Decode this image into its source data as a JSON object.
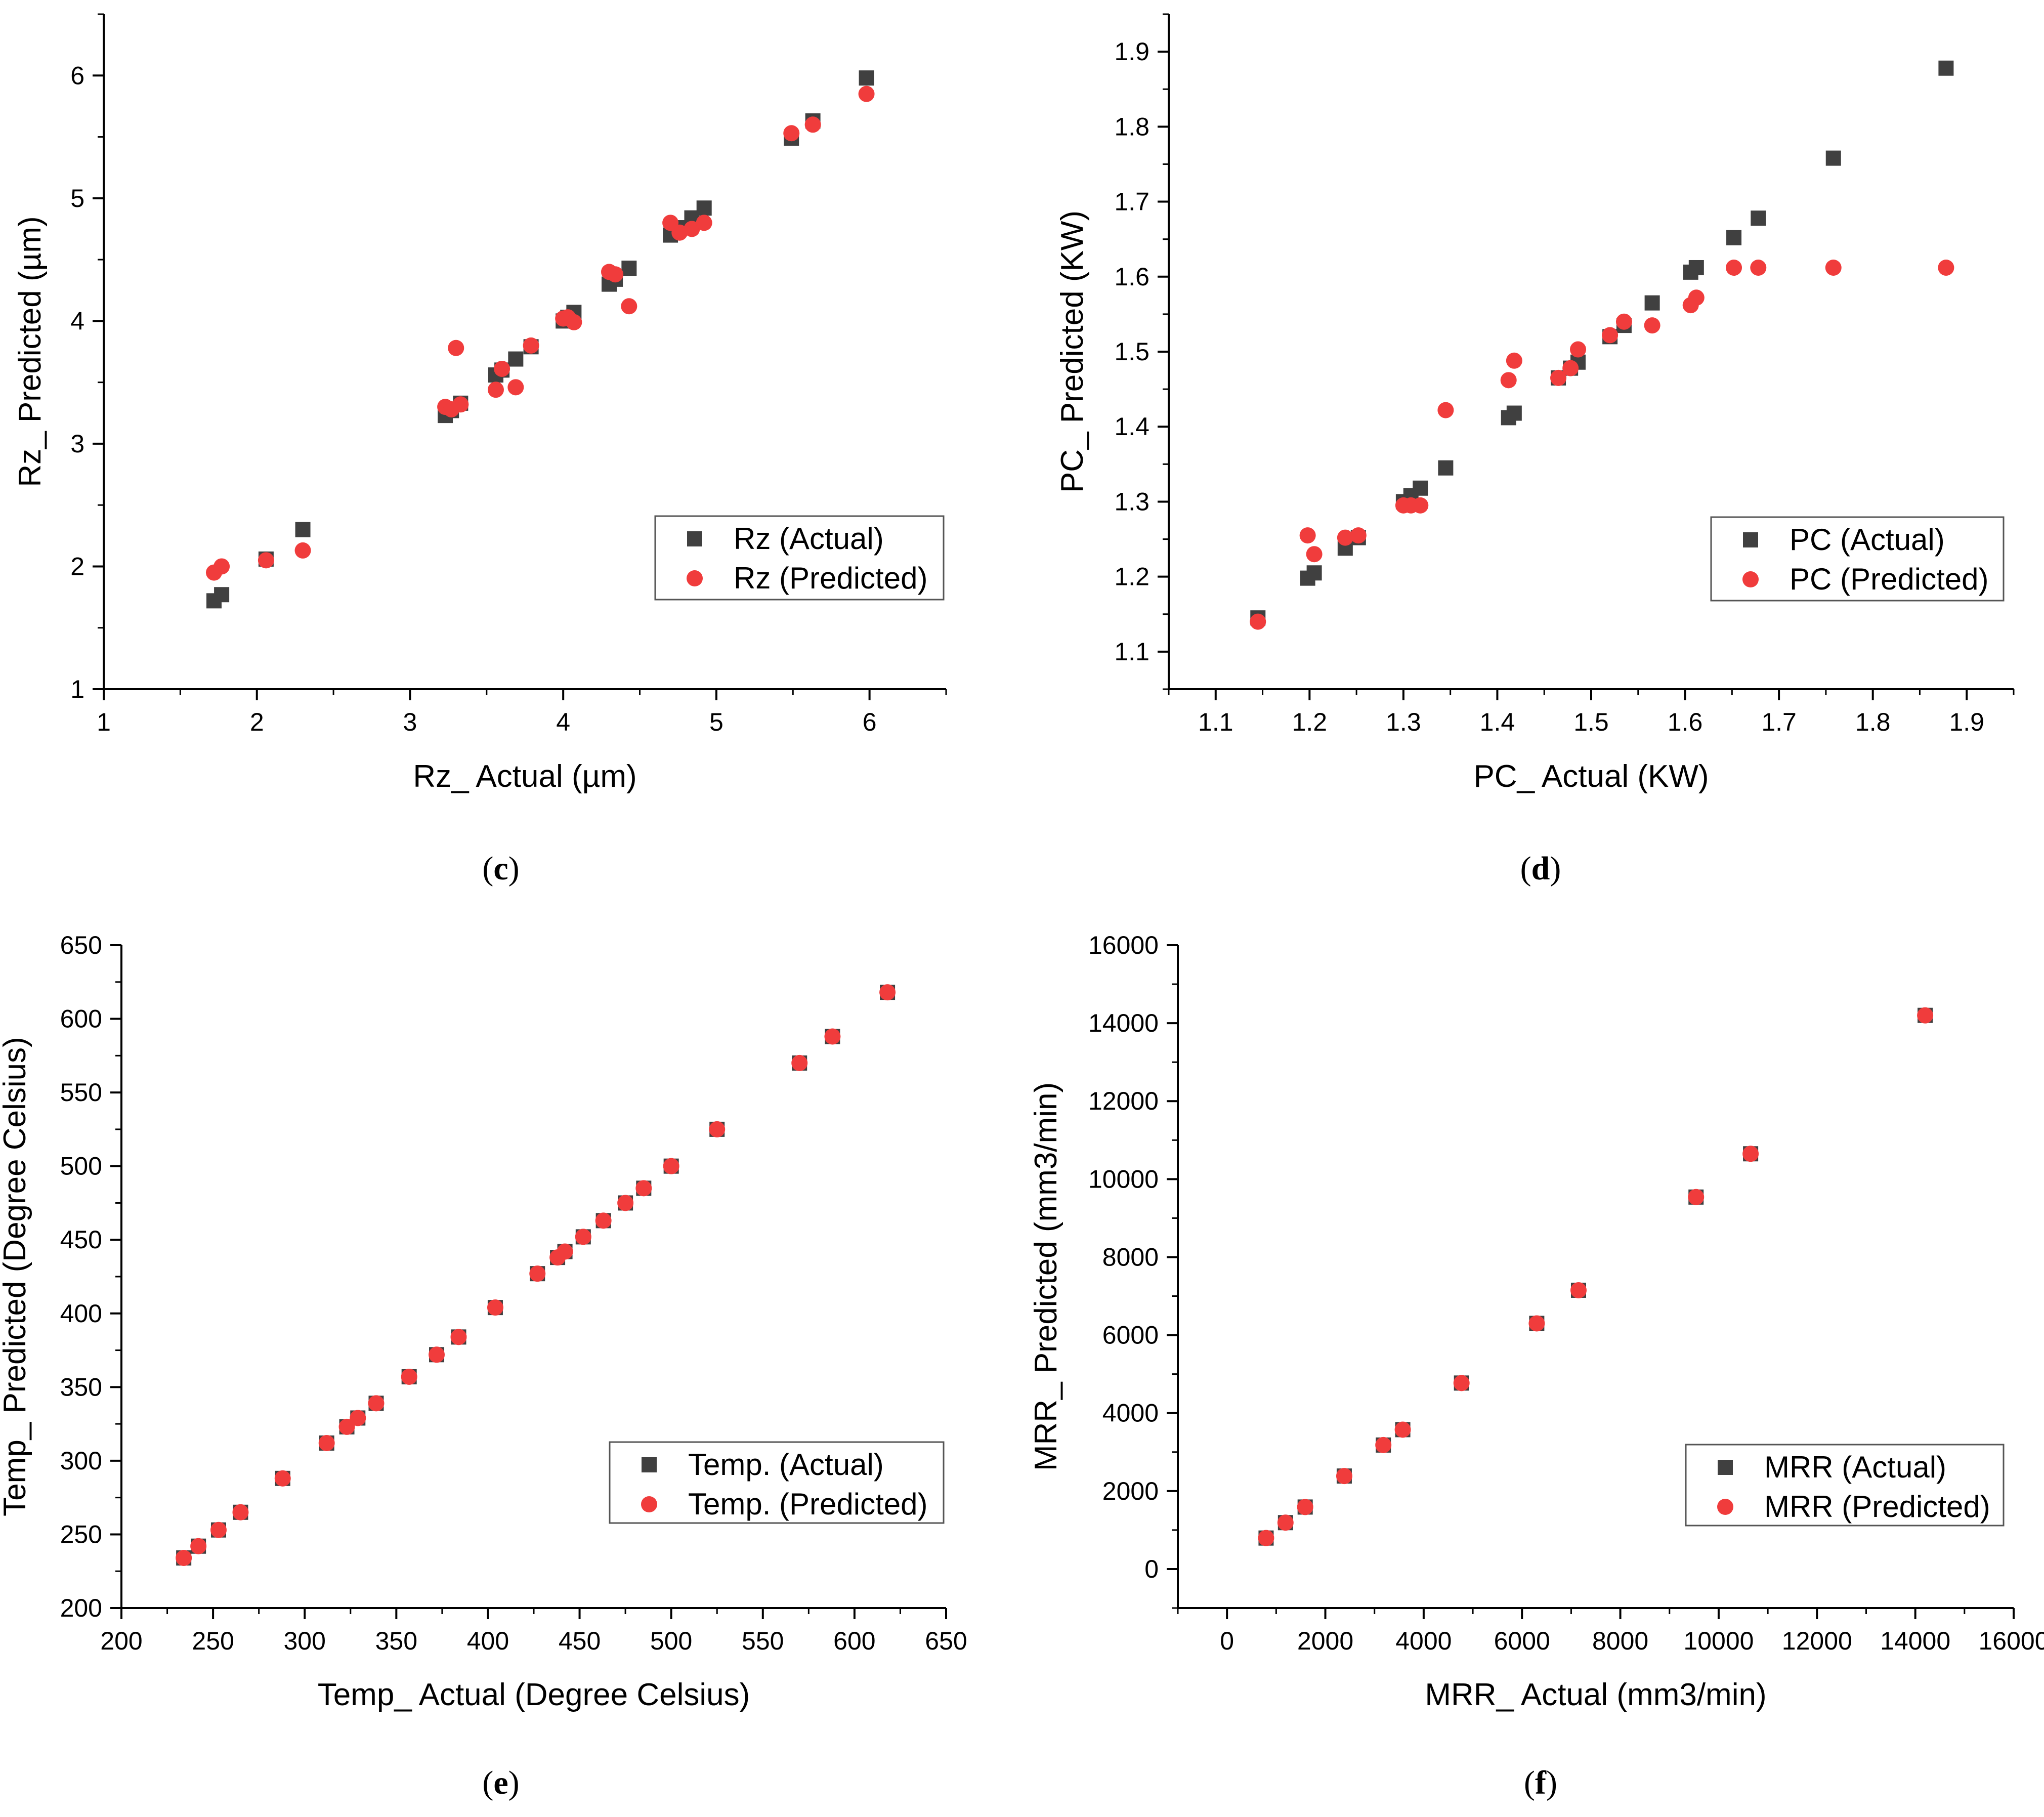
{
  "colors": {
    "actual": "#404040",
    "predicted": "#f03c3c"
  },
  "chart_data": [
    {
      "id": "c",
      "type": "scatter",
      "panel_label": "(c)",
      "panel_letter": "c",
      "title": "",
      "xlabel": "Rz_ Actual (µm)",
      "ylabel": "Rz_ Predicted (µm)",
      "xlim": [
        1,
        6.5
      ],
      "ylim": [
        1,
        6.5
      ],
      "xticks": [
        1,
        2,
        3,
        4,
        5,
        6
      ],
      "yticks": [
        1,
        2,
        3,
        4,
        5,
        6
      ],
      "xtick_labels": [
        "1",
        "2",
        "3",
        "4",
        "5",
        "6"
      ],
      "ytick_labels": [
        "1",
        "2",
        "3",
        "4",
        "5",
        "6"
      ],
      "legend_position": "lower-right",
      "series": [
        {
          "name": "Rz (Actual)",
          "marker": "square",
          "x": [
            1.72,
            1.77,
            2.06,
            2.3,
            3.23,
            3.27,
            3.33,
            3.56,
            3.6,
            3.69,
            3.79,
            4.0,
            4.03,
            4.07,
            4.3,
            4.34,
            4.43,
            4.7,
            4.76,
            4.84,
            4.92,
            5.49,
            5.63,
            5.98
          ],
          "y": [
            1.72,
            1.77,
            2.06,
            2.3,
            3.23,
            3.27,
            3.33,
            3.56,
            3.6,
            3.69,
            3.79,
            4.0,
            4.03,
            4.07,
            4.3,
            4.34,
            4.43,
            4.7,
            4.76,
            4.84,
            4.92,
            5.49,
            5.63,
            5.98
          ]
        },
        {
          "name": "Rz (Predicted)",
          "marker": "circle",
          "x": [
            1.72,
            1.77,
            2.06,
            2.3,
            3.23,
            3.27,
            3.3,
            3.33,
            3.56,
            3.6,
            3.69,
            3.79,
            4.0,
            4.03,
            4.07,
            4.3,
            4.34,
            4.43,
            4.7,
            4.76,
            4.84,
            4.92,
            5.49,
            5.63,
            5.98
          ],
          "y": [
            1.95,
            2.0,
            2.05,
            2.13,
            3.3,
            3.28,
            3.78,
            3.32,
            3.44,
            3.61,
            3.46,
            3.8,
            4.02,
            4.03,
            3.99,
            4.4,
            4.38,
            4.12,
            4.8,
            4.72,
            4.75,
            4.8,
            5.53,
            5.6,
            5.85
          ]
        }
      ]
    },
    {
      "id": "d",
      "type": "scatter",
      "panel_label": "(d)",
      "panel_letter": "d",
      "title": "",
      "xlabel": "PC_ Actual (KW)",
      "ylabel": "PC_ Predicted (KW)",
      "xlim": [
        1.05,
        1.95
      ],
      "ylim": [
        1.05,
        1.95
      ],
      "xticks": [
        1.1,
        1.2,
        1.3,
        1.4,
        1.5,
        1.6,
        1.7,
        1.8,
        1.9
      ],
      "yticks": [
        1.1,
        1.2,
        1.3,
        1.4,
        1.5,
        1.6,
        1.7,
        1.8,
        1.9
      ],
      "xtick_labels": [
        "1.1",
        "1.2",
        "1.3",
        "1.4",
        "1.5",
        "1.6",
        "1.7",
        "1.8",
        "1.9"
      ],
      "ytick_labels": [
        "1.1",
        "1.2",
        "1.3",
        "1.4",
        "1.5",
        "1.6",
        "1.7",
        "1.8",
        "1.9"
      ],
      "legend_position": "lower-right",
      "series": [
        {
          "name": "PC (Actual)",
          "marker": "square",
          "x": [
            1.145,
            1.198,
            1.205,
            1.238,
            1.252,
            1.3,
            1.308,
            1.318,
            1.345,
            1.412,
            1.418,
            1.465,
            1.478,
            1.486,
            1.52,
            1.535,
            1.565,
            1.606,
            1.612,
            1.652,
            1.678,
            1.758,
            1.878
          ],
          "y": [
            1.145,
            1.198,
            1.205,
            1.238,
            1.252,
            1.3,
            1.308,
            1.318,
            1.345,
            1.412,
            1.418,
            1.465,
            1.478,
            1.486,
            1.52,
            1.535,
            1.565,
            1.606,
            1.612,
            1.652,
            1.678,
            1.758,
            1.878
          ]
        },
        {
          "name": "PC (Predicted)",
          "marker": "circle",
          "x": [
            1.145,
            1.198,
            1.205,
            1.238,
            1.252,
            1.3,
            1.308,
            1.318,
            1.345,
            1.412,
            1.418,
            1.465,
            1.478,
            1.486,
            1.52,
            1.535,
            1.565,
            1.606,
            1.612,
            1.652,
            1.678,
            1.758,
            1.878
          ],
          "y": [
            1.14,
            1.255,
            1.23,
            1.252,
            1.255,
            1.295,
            1.295,
            1.295,
            1.422,
            1.462,
            1.488,
            1.465,
            1.478,
            1.503,
            1.522,
            1.54,
            1.535,
            1.562,
            1.572,
            1.612,
            1.612,
            1.612,
            1.612
          ]
        }
      ]
    },
    {
      "id": "e",
      "type": "scatter",
      "panel_label": "(e)",
      "panel_letter": "e",
      "title": "",
      "xlabel": "Temp_ Actual (Degree Celsius)",
      "ylabel": "Temp_ Predicted (Degree Celsius)",
      "xlim": [
        200,
        650
      ],
      "ylim": [
        200,
        650
      ],
      "xticks": [
        200,
        250,
        300,
        350,
        400,
        450,
        500,
        550,
        600,
        650
      ],
      "yticks": [
        200,
        250,
        300,
        350,
        400,
        450,
        500,
        550,
        600,
        650
      ],
      "xtick_labels": [
        "200",
        "250",
        "300",
        "350",
        "400",
        "450",
        "500",
        "550",
        "600",
        "650"
      ],
      "ytick_labels": [
        "200",
        "250",
        "300",
        "350",
        "400",
        "450",
        "500",
        "550",
        "600",
        "650"
      ],
      "legend_position": "lower-right",
      "series": [
        {
          "name": "Temp. (Actual)",
          "marker": "square",
          "x": [
            234,
            242,
            253,
            265,
            288,
            312,
            323,
            329,
            339,
            357,
            372,
            384,
            404,
            427,
            438,
            442,
            452,
            463,
            475,
            485,
            500,
            525,
            570,
            588,
            618
          ],
          "y": [
            234,
            242,
            253,
            265,
            288,
            312,
            323,
            329,
            339,
            357,
            372,
            384,
            404,
            427,
            438,
            442,
            452,
            463,
            475,
            485,
            500,
            525,
            570,
            588,
            618
          ]
        },
        {
          "name": "Temp. (Predicted)",
          "marker": "circle",
          "x": [
            234,
            242,
            253,
            265,
            288,
            312,
            323,
            329,
            339,
            357,
            372,
            384,
            404,
            427,
            438,
            442,
            452,
            463,
            475,
            485,
            500,
            525,
            570,
            588,
            618
          ],
          "y": [
            234,
            242,
            253,
            265,
            288,
            312,
            323,
            329,
            339,
            357,
            372,
            384,
            404,
            427,
            438,
            442,
            452,
            463,
            475,
            485,
            500,
            525,
            570,
            588,
            618
          ]
        }
      ]
    },
    {
      "id": "f",
      "type": "scatter",
      "panel_label": "(f)",
      "panel_letter": "f",
      "title": "",
      "xlabel": "MRR_ Actual (mm3/min)",
      "ylabel": "MRR_ Predicted (mm3/min)",
      "xlim": [
        -1000,
        16000
      ],
      "ylim": [
        -1000,
        16000
      ],
      "xticks": [
        0,
        2000,
        4000,
        6000,
        8000,
        10000,
        12000,
        14000,
        16000
      ],
      "yticks": [
        0,
        2000,
        4000,
        6000,
        8000,
        10000,
        12000,
        14000,
        16000
      ],
      "xtick_labels": [
        "0",
        "2000",
        "4000",
        "6000",
        "8000",
        "10000",
        "12000",
        "14000",
        "16000"
      ],
      "ytick_labels": [
        "0",
        "2000",
        "4000",
        "6000",
        "8000",
        "10000",
        "12000",
        "14000",
        "16000"
      ],
      "legend_position": "lower-right",
      "series": [
        {
          "name": "MRR (Actual)",
          "marker": "square",
          "x": [
            795,
            1190,
            1590,
            2385,
            3180,
            3575,
            4770,
            6300,
            7150,
            9540,
            10650,
            14200
          ],
          "y": [
            795,
            1190,
            1590,
            2385,
            3180,
            3575,
            4770,
            6300,
            7150,
            9540,
            10650,
            14200
          ]
        },
        {
          "name": "MRR (Predicted)",
          "marker": "circle",
          "x": [
            795,
            1190,
            1590,
            2385,
            3180,
            3575,
            4770,
            6300,
            7150,
            9540,
            10650,
            14200
          ],
          "y": [
            795,
            1190,
            1590,
            2385,
            3180,
            3575,
            4770,
            6300,
            7150,
            9540,
            10650,
            14200
          ]
        }
      ]
    }
  ]
}
